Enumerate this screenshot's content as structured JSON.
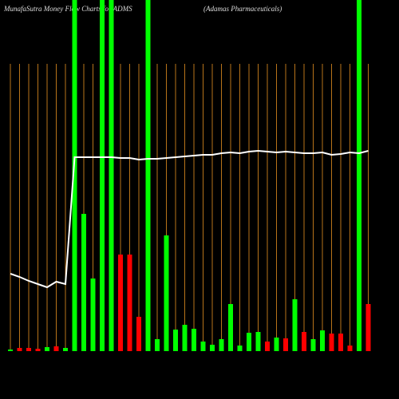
{
  "chart_data": {
    "type": "bar",
    "title": "MunafaSutra  Money Flow  Charts for ADMS",
    "subtitle": "(Adamas Pharmaceuticals)",
    "values": [
      2,
      4,
      4,
      3,
      5,
      6,
      4,
      440,
      172,
      91,
      440,
      440,
      121,
      121,
      43,
      440,
      15,
      145,
      27,
      33,
      28,
      12,
      8,
      15,
      59,
      7,
      23,
      24,
      12,
      17,
      16,
      65,
      24,
      15,
      26,
      22,
      22,
      7,
      440,
      59
    ],
    "colors": [
      "#00ff00",
      "#ff0000",
      "#ff0000",
      "#ff0000",
      "#00ff00",
      "#ff0000",
      "#00ff00",
      "#00ff00",
      "#00ff00",
      "#00ff00",
      "#00ff00",
      "#00ff00",
      "#ff0000",
      "#ff0000",
      "#ff0000",
      "#00ff00",
      "#00ff00",
      "#00ff00",
      "#00ff00",
      "#00ff00",
      "#00ff00",
      "#00ff00",
      "#00ff00",
      "#00ff00",
      "#00ff00",
      "#00ff00",
      "#00ff00",
      "#00ff00",
      "#ff0000",
      "#00ff00",
      "#ff0000",
      "#00ff00",
      "#ff0000",
      "#00ff00",
      "#00ff00",
      "#ff0000",
      "#ff0000",
      "#ff0000",
      "#00ff00",
      "#ff0000"
    ],
    "ylim": [
      0,
      440
    ],
    "line_values": [
      97,
      93,
      88,
      84,
      80,
      87,
      84,
      243,
      243,
      243,
      243,
      243,
      242,
      242,
      240,
      241,
      241,
      242,
      243,
      244,
      245,
      246,
      246,
      248,
      249,
      248,
      250,
      251,
      250,
      249,
      250,
      249,
      248,
      248,
      249,
      246,
      247,
      249,
      248,
      251
    ],
    "line_color": "#ffffff",
    "y2lim": [
      0,
      440
    ],
    "grid": true,
    "grid_color": "#b8741a"
  }
}
